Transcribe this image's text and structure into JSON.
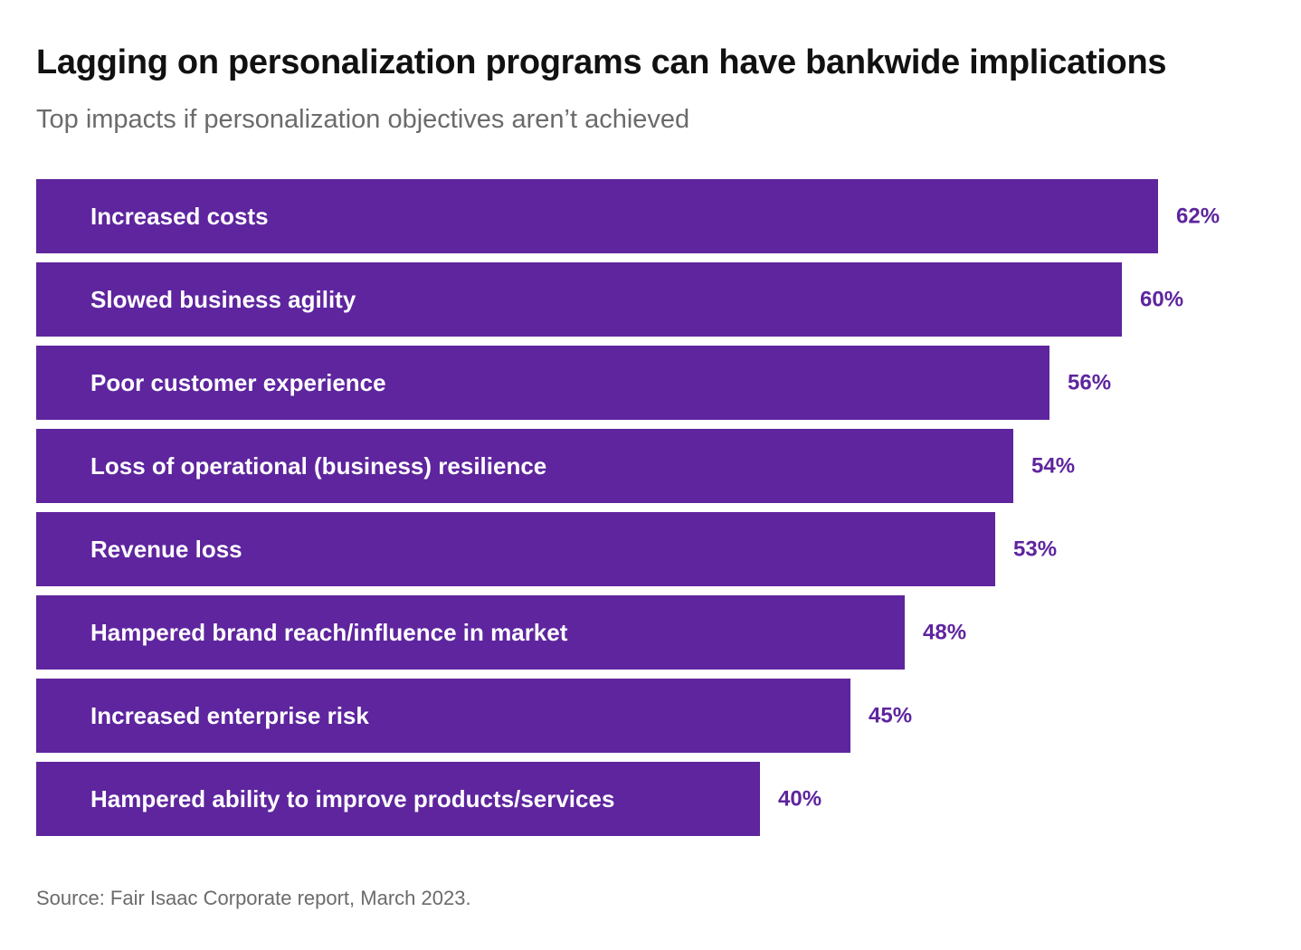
{
  "title": "Lagging on personalization programs can have bankwide implications",
  "subtitle": "Top impacts if personalization objectives aren’t achieved",
  "source": "Source: Fair Isaac Corporate report, March 2023.",
  "colors": {
    "bar": "#5e259e",
    "bar_label": "#ffffff",
    "value_label": "#5e259e",
    "title": "#111111",
    "subtitle": "#6b6b6b"
  },
  "chart_data": {
    "type": "bar",
    "orientation": "horizontal",
    "categories": [
      "Increased costs",
      "Slowed business agility",
      "Poor customer experience",
      "Loss of operational (business) resilience",
      "Revenue loss",
      "Hampered brand reach/influence in market",
      "Increased enterprise risk",
      "Hampered ability to improve products/services"
    ],
    "values": [
      62,
      60,
      56,
      54,
      53,
      48,
      45,
      40
    ],
    "value_labels": [
      "62%",
      "60%",
      "56%",
      "54%",
      "53%",
      "48%",
      "45%",
      "40%"
    ],
    "unit": "%",
    "title": "Lagging on personalization programs can have bankwide implications",
    "subtitle": "Top impacts if personalization objectives aren’t achieved",
    "xlabel": "",
    "ylabel": "",
    "grid": false,
    "legend": "none"
  }
}
